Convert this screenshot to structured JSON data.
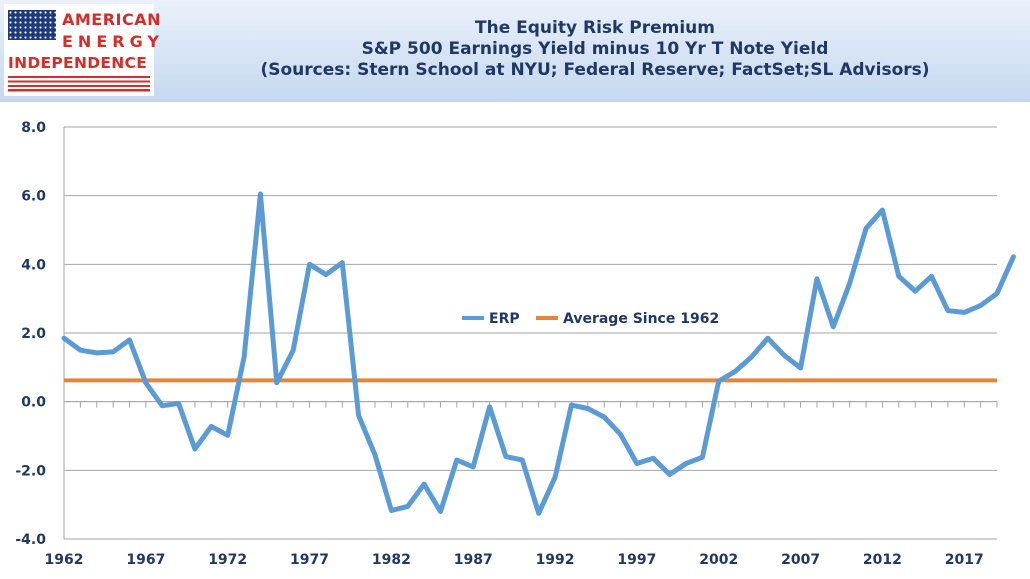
{
  "logo": {
    "line1": "AMERICAN",
    "line2": "ENERGY",
    "line3": "INDEPENDENCE"
  },
  "header": {
    "title": "The Equity Risk Premium",
    "subtitle": "S&P 500 Earnings Yield minus 10 Yr T Note Yield",
    "sources": "(Sources: Stern School at NYU; Federal Reserve; FactSet;SL Advisors)"
  },
  "colors": {
    "erp": "#5b9bd5",
    "average": "#e0873f",
    "text": "#1f3864",
    "grid": "#a6a6a6",
    "logo_red": "#d42e2b"
  },
  "chart_data": {
    "type": "line",
    "title": "The Equity Risk Premium",
    "subtitle": "S&P 500 Earnings Yield minus 10 Yr T Note Yield",
    "ylim": [
      -4,
      8
    ],
    "yticks": [
      "8.0",
      "6.0",
      "4.0",
      "2.0",
      "0.0",
      "-2.0",
      "-4.0"
    ],
    "ytick_values": [
      8,
      6,
      4,
      2,
      0,
      -2,
      -4
    ],
    "xticks": [
      "1962",
      "1967",
      "1972",
      "1977",
      "1982",
      "1987",
      "1992",
      "1997",
      "2002",
      "2007",
      "2012",
      "2017"
    ],
    "xlim": [
      1962,
      2019
    ],
    "grid": "horizontal",
    "legend": "center",
    "series": [
      {
        "name": "ERP",
        "x": [
          1962,
          1963,
          1964,
          1965,
          1966,
          1967,
          1968,
          1969,
          1970,
          1971,
          1972,
          1973,
          1974,
          1975,
          1976,
          1977,
          1978,
          1979,
          1980,
          1981,
          1982,
          1983,
          1984,
          1985,
          1986,
          1987,
          1988,
          1989,
          1990,
          1991,
          1992,
          1993,
          1994,
          1995,
          1996,
          1997,
          1998,
          1999,
          2000,
          2001,
          2002,
          2003,
          2004,
          2005,
          2006,
          2007,
          2008,
          2009,
          2010,
          2011,
          2012,
          2013,
          2014,
          2015,
          2016,
          2017,
          2018,
          2019,
          2020
        ],
        "values": [
          1.85,
          1.5,
          1.42,
          1.45,
          1.8,
          0.55,
          -0.12,
          -0.05,
          -1.38,
          -0.72,
          -0.98,
          1.3,
          6.05,
          0.55,
          1.5,
          4.0,
          3.7,
          4.05,
          -0.4,
          -1.55,
          -3.17,
          -3.05,
          -2.4,
          -3.2,
          -1.7,
          -1.9,
          -0.15,
          -1.6,
          -1.7,
          -3.25,
          -2.2,
          -0.1,
          -0.2,
          -0.45,
          -0.95,
          -1.8,
          -1.65,
          -2.12,
          -1.8,
          -1.62,
          0.6,
          0.88,
          1.3,
          1.85,
          1.35,
          0.98,
          3.58,
          2.18,
          3.45,
          5.05,
          5.58,
          3.65,
          3.22,
          3.65,
          2.65,
          2.6,
          2.8,
          3.15,
          4.22
        ]
      },
      {
        "name": "Average Since 1962",
        "x": [
          1962,
          2020
        ],
        "values": [
          0.62,
          0.62
        ]
      }
    ]
  }
}
